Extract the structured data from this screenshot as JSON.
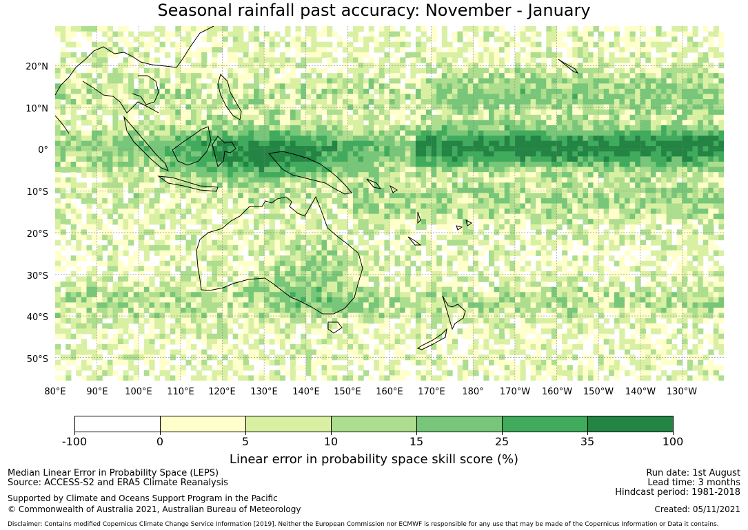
{
  "title": "Seasonal rainfall past accuracy: November - January",
  "map": {
    "lat_labels": [
      "20°N",
      "10°N",
      "0°",
      "10°S",
      "20°S",
      "30°S",
      "40°S",
      "50°S"
    ],
    "lon_labels": [
      "80°E",
      "90°E",
      "100°E",
      "110°E",
      "120°E",
      "130°E",
      "140°E",
      "150°E",
      "160°E",
      "170°E",
      "180°",
      "170°W",
      "160°W",
      "150°W",
      "140°W",
      "130°W"
    ]
  },
  "legend": {
    "bins": [
      {
        "from": -100,
        "to": 0,
        "color": "#ffffff"
      },
      {
        "from": 0,
        "to": 5,
        "color": "#ffffcc"
      },
      {
        "from": 5,
        "to": 10,
        "color": "#d9f0a3"
      },
      {
        "from": 10,
        "to": 15,
        "color": "#addd8e"
      },
      {
        "from": 15,
        "to": 25,
        "color": "#78c679"
      },
      {
        "from": 25,
        "to": 35,
        "color": "#41ab5d"
      },
      {
        "from": 35,
        "to": 100,
        "color": "#238443"
      }
    ],
    "ticks": [
      "-100",
      "0",
      "5",
      "10",
      "15",
      "25",
      "35",
      "100"
    ],
    "label": "Linear error in probability space skill score (%)"
  },
  "footer": {
    "method": "Median Linear Error in Probability Space (LEPS)",
    "source": "Source: ACCESS-S2 and ERA5 Climate Reanalysis",
    "support": "Supported by Climate and Oceans Support Program in the Pacific",
    "copyright": "© Commonwealth of Australia 2021, Australian Bureau of Meteorology",
    "disclaimer": "Disclaimer: Contains modified Copernicus Climate Change Service Information [2019]. Neither the European Commission nor ECMWF is responsible for any use that may be made of the Copernicus Information or Data it contains.",
    "run_date": "Run date: 1st August",
    "lead_time": "Lead time: 3 months",
    "hindcast": "Hindcast period: 1981-2018",
    "created": "Created: 05/11/2021"
  }
}
